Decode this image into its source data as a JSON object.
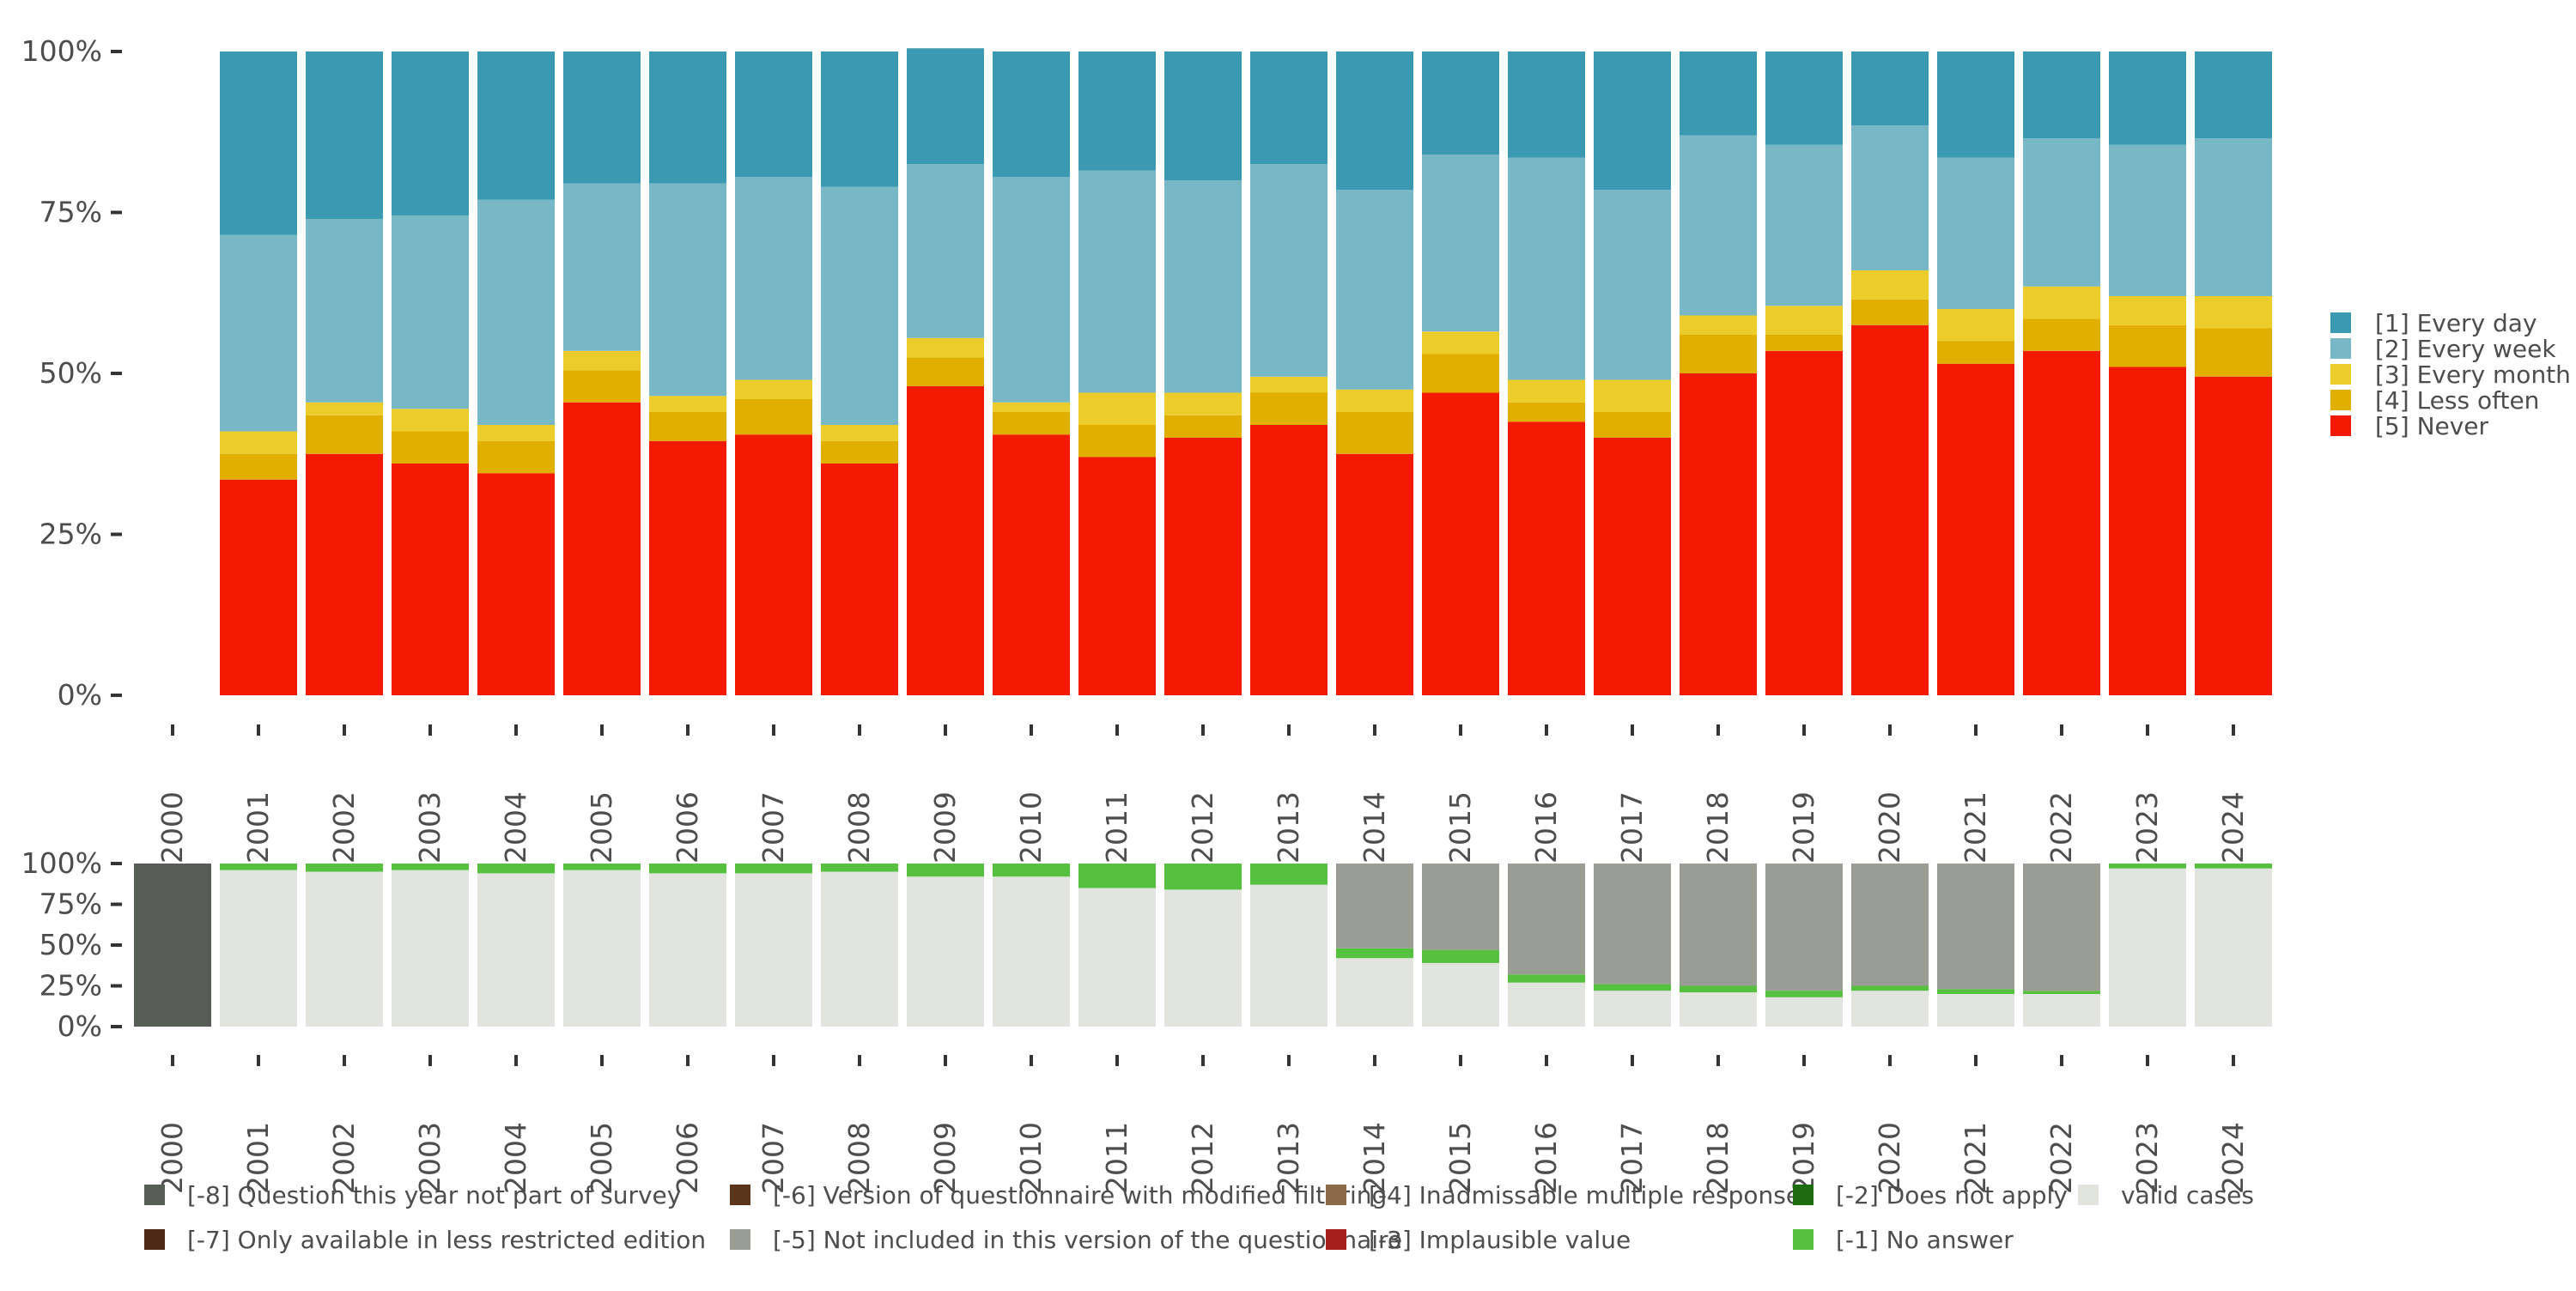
{
  "chart_data": [
    {
      "type": "bar",
      "stacked": true,
      "percent": true,
      "categories": [
        "2000",
        "2001",
        "2002",
        "2003",
        "2004",
        "2005",
        "2006",
        "2007",
        "2008",
        "2009",
        "2010",
        "2011",
        "2012",
        "2013",
        "2014",
        "2015",
        "2016",
        "2017",
        "2018",
        "2019",
        "2020",
        "2021",
        "2022",
        "2023",
        "2024"
      ],
      "ylim": [
        0,
        100
      ],
      "yticks": [
        "0%",
        "25%",
        "50%",
        "75%",
        "100%"
      ],
      "legend_position": "right",
      "series": [
        {
          "name": "[5] Never",
          "color": "#F21A00",
          "values": [
            null,
            33.5,
            37.5,
            36,
            34.5,
            45.5,
            39.5,
            40.5,
            36,
            48,
            40.5,
            37,
            40,
            42,
            37.5,
            47,
            42.5,
            40,
            50,
            53.5,
            57.5,
            51.5,
            53.5,
            51,
            49.5
          ]
        },
        {
          "name": "[4] Less often",
          "color": "#E1AF00",
          "values": [
            null,
            4,
            6,
            5,
            5,
            5,
            4.5,
            5.5,
            3.5,
            4.5,
            3.5,
            5,
            3.5,
            5,
            6.5,
            6,
            3,
            4,
            6,
            2.5,
            4,
            3.5,
            5,
            6.5,
            7.5
          ]
        },
        {
          "name": "[3] Every month",
          "color": "#EBCC2A",
          "values": [
            null,
            3.5,
            2,
            3.5,
            2.5,
            3,
            2.5,
            3,
            2.5,
            3,
            1.5,
            5,
            3.5,
            2.5,
            3.5,
            3.5,
            3.5,
            5,
            3,
            4.5,
            4.5,
            5,
            5,
            4.5,
            5
          ]
        },
        {
          "name": "[2] Every week",
          "color": "#78B7C5",
          "values": [
            null,
            30.5,
            28.5,
            30,
            35,
            26,
            33,
            31.5,
            37,
            27,
            35,
            34.5,
            33,
            33,
            31,
            27.5,
            34.5,
            29.5,
            28,
            25,
            22.5,
            23.5,
            23,
            23.5,
            24.5
          ]
        },
        {
          "name": "[1] Every day",
          "color": "#3B9AB2",
          "values": [
            null,
            28.5,
            26,
            25.5,
            23,
            20.5,
            20.5,
            19.5,
            21,
            18,
            19.5,
            18.5,
            20,
            17.5,
            21.5,
            16,
            16.5,
            21.5,
            13,
            14.5,
            11.5,
            16.5,
            13.5,
            14.5,
            13.5
          ]
        }
      ]
    },
    {
      "type": "bar",
      "stacked": true,
      "percent": true,
      "categories": [
        "2000",
        "2001",
        "2002",
        "2003",
        "2004",
        "2005",
        "2006",
        "2007",
        "2008",
        "2009",
        "2010",
        "2011",
        "2012",
        "2013",
        "2014",
        "2015",
        "2016",
        "2017",
        "2018",
        "2019",
        "2020",
        "2021",
        "2022",
        "2023",
        "2024"
      ],
      "ylim": [
        0,
        100
      ],
      "yticks": [
        "0%",
        "25%",
        "50%",
        "75%",
        "100%"
      ],
      "legend_position": "bottom",
      "series": [
        {
          "name": "valid cases",
          "color": "#E1E4DF",
          "values": [
            0,
            96,
            95,
            96,
            94,
            96,
            94,
            94,
            95,
            92,
            92,
            85,
            84,
            87,
            42,
            39,
            27,
            22,
            21,
            18,
            22,
            20,
            20,
            97,
            97
          ]
        },
        {
          "name": "[-1] No answer",
          "color": "#56C13F",
          "values": [
            0,
            4,
            5,
            4,
            6,
            4,
            6,
            6,
            5,
            8,
            8,
            15,
            16,
            13,
            6,
            8,
            5,
            4,
            4,
            4,
            3,
            3,
            2,
            3,
            3
          ]
        },
        {
          "name": "[-2] Does not apply",
          "color": "#1F6B11",
          "values": [
            0,
            0,
            0,
            0,
            0,
            0,
            0,
            0,
            0,
            0,
            0,
            0,
            0,
            0,
            0,
            0,
            0,
            0,
            0,
            0,
            0,
            0,
            0,
            0,
            0
          ]
        },
        {
          "name": "[-3] Implausible value",
          "color": "#A3201B",
          "values": [
            0,
            0,
            0,
            0,
            0,
            0,
            0,
            0,
            0,
            0,
            0,
            0,
            0,
            0,
            0,
            0,
            0,
            0,
            0,
            0,
            0,
            0,
            0,
            0,
            0
          ]
        },
        {
          "name": "[-4] Inadmissable multiple response",
          "color": "#8B6A48",
          "values": [
            0,
            0,
            0,
            0,
            0,
            0,
            0,
            0,
            0,
            0,
            0,
            0,
            0,
            0,
            0,
            0,
            0,
            0,
            0,
            0,
            0,
            0,
            0,
            0,
            0
          ]
        },
        {
          "name": "[-5] Not included in this version of the questionnaire",
          "color": "#9A9D94",
          "values": [
            0,
            0,
            0,
            0,
            0,
            0,
            0,
            0,
            0,
            0,
            0,
            0,
            0,
            0,
            52,
            53,
            68,
            74,
            75,
            78,
            75,
            77,
            78,
            0,
            0
          ]
        },
        {
          "name": "[-6] Version of questionnaire with modified filtering",
          "color": "#5A3519",
          "values": [
            0,
            0,
            0,
            0,
            0,
            0,
            0,
            0,
            0,
            0,
            0,
            0,
            0,
            0,
            0,
            0,
            0,
            0,
            0,
            0,
            0,
            0,
            0,
            0,
            0
          ]
        },
        {
          "name": "[-7] Only available in less restricted edition",
          "color": "#4C2A16",
          "values": [
            0,
            0,
            0,
            0,
            0,
            0,
            0,
            0,
            0,
            0,
            0,
            0,
            0,
            0,
            0,
            0,
            0,
            0,
            0,
            0,
            0,
            0,
            0,
            0,
            0
          ]
        },
        {
          "name": "[-8] Question this year not part of survey",
          "color": "#575C56",
          "values": [
            100,
            0,
            0,
            0,
            0,
            0,
            0,
            0,
            0,
            0,
            0,
            0,
            0,
            0,
            0,
            0,
            0,
            0,
            0,
            0,
            0,
            0,
            0,
            0,
            0
          ]
        }
      ],
      "legend_order": [
        "[-8] Question this year not part of survey",
        "[-7] Only available in less restricted edition",
        "[-6] Version of questionnaire with modified filtering",
        "[-5] Not included in this version of the questionnaire",
        "[-4] Inadmissable multiple response",
        "[-3] Implausible value",
        "[-2] Does not apply",
        "[-1] No answer",
        "valid cases"
      ]
    }
  ]
}
